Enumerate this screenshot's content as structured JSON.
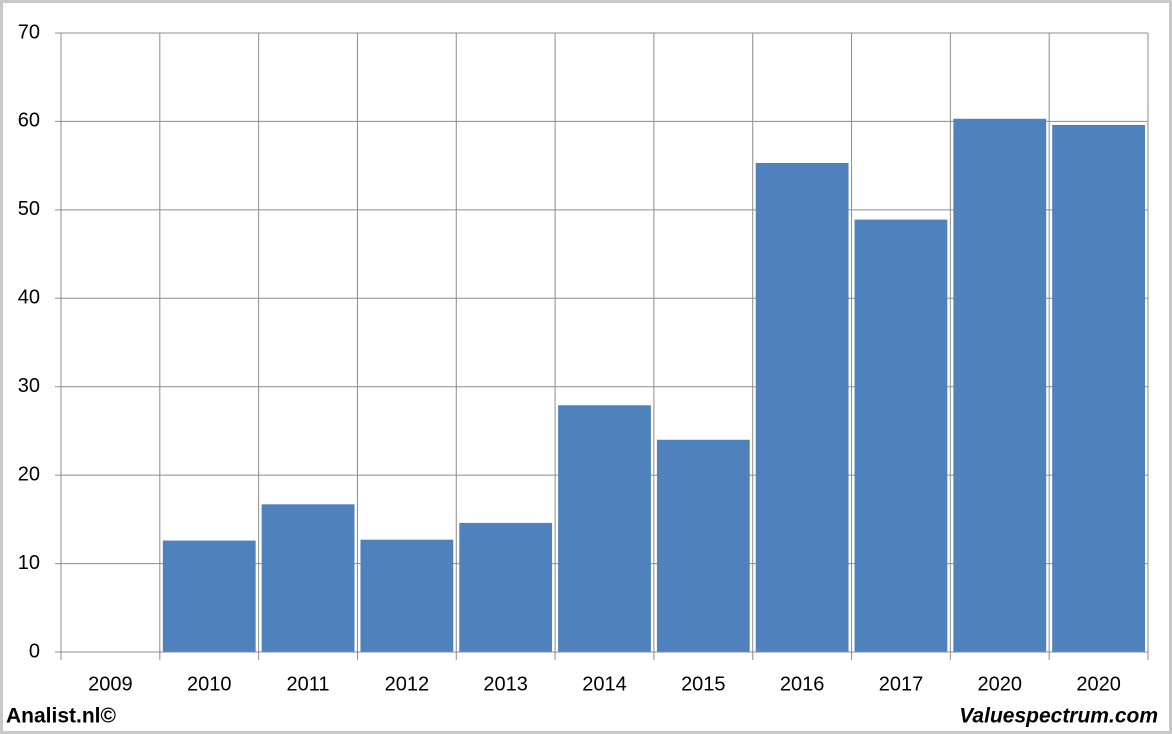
{
  "chart_data": {
    "type": "bar",
    "categories": [
      "2009",
      "2010",
      "2011",
      "2012",
      "2013",
      "2014",
      "2015",
      "2016",
      "2017",
      "2020",
      "2020"
    ],
    "values": [
      null,
      12.6,
      16.7,
      12.7,
      14.6,
      27.9,
      24.0,
      55.3,
      48.9,
      60.3,
      59.6
    ],
    "color": "#4f81bd",
    "ylim": [
      0,
      70
    ],
    "yticks": [
      0,
      10,
      20,
      30,
      40,
      50,
      60,
      70
    ],
    "grid": true,
    "annotations": [
      "Analist.nl©",
      "Valuespectrum.com"
    ]
  }
}
